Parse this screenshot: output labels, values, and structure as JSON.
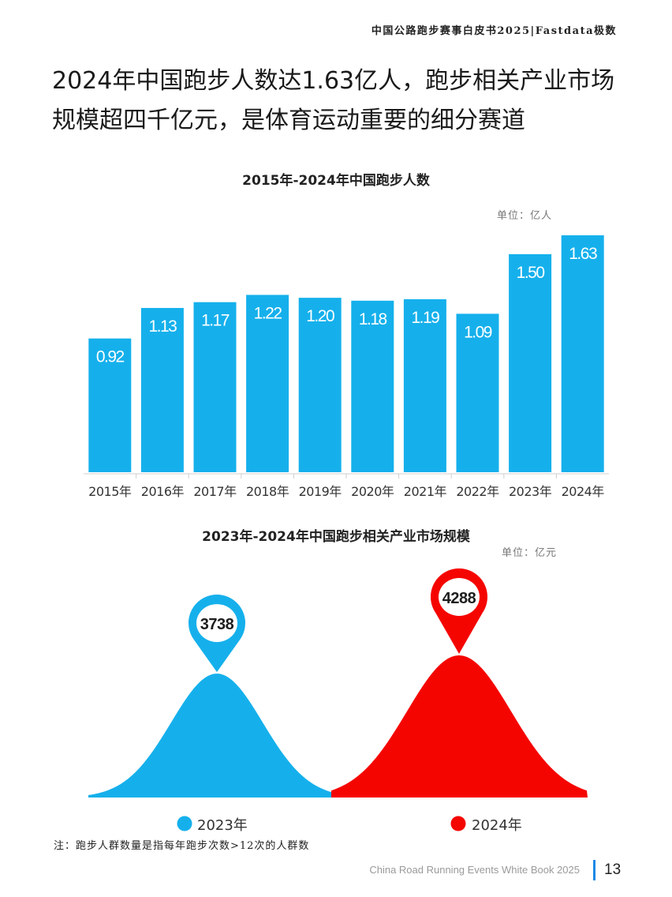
{
  "header": {
    "title": "中国公路跑步赛事白皮书2025|Fastdata极数"
  },
  "headline": "2024年中国跑步人数达1.63亿人，跑步相关产业市场规模超四千亿元，是体育运动重要的细分赛道",
  "chart_data": [
    {
      "type": "bar",
      "title": "2015年-2024年中国跑步人数",
      "unit": "单位：亿人",
      "categories": [
        "2015年",
        "2016年",
        "2017年",
        "2018年",
        "2019年",
        "2020年",
        "2021年",
        "2022年",
        "2023年",
        "2024年"
      ],
      "values": [
        0.92,
        1.13,
        1.17,
        1.22,
        1.2,
        1.18,
        1.19,
        1.09,
        1.5,
        1.63
      ],
      "value_labels": [
        "0.92",
        "1.13",
        "1.17",
        "1.22",
        "1.20",
        "1.18",
        "1.19",
        "1.09",
        "1.50",
        "1.63"
      ],
      "ylim": [
        0,
        1.63
      ],
      "grid": false,
      "bar_color": "#15b0ec"
    },
    {
      "type": "area",
      "title": "2023年-2024年中国跑步相关产业市场规模",
      "unit": "单位：亿元",
      "series": [
        {
          "name": "2023年",
          "value": 3738,
          "value_label": "3738",
          "color": "#15b0ec"
        },
        {
          "name": "2024年",
          "value": 4288,
          "value_label": "4288",
          "color": "#f50500"
        }
      ],
      "legend": "bottom"
    }
  ],
  "note": "注：跑步人群数量是指每年跑步次数>12次的人群数",
  "footer": {
    "text": "China Road Running Events White Book 2025",
    "page": "13"
  }
}
